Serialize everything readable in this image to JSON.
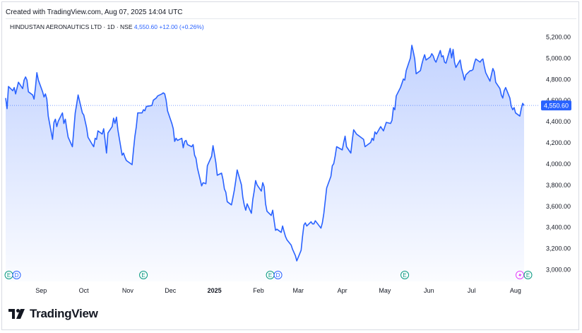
{
  "header": {
    "created_with": "Created with TradingView.com, Aug 07, 2025 14:04 UTC",
    "symbol": "HINDUSTAN AERONAUTICS LTD · 1D · NSE",
    "last_price": "4,550.60",
    "change": "+12.00 (+0.26%)"
  },
  "brand": {
    "name": "TradingView",
    "logo_icon": "tradingview-logo-icon"
  },
  "chart_data": {
    "type": "area",
    "title": "",
    "xlabel": "",
    "ylabel": "",
    "ylim": [
      2950,
      5300
    ],
    "y_ticks": [
      "5,200.00",
      "5,000.00",
      "4,800.00",
      "4,600.00",
      "4,400.00",
      "4,200.00",
      "4,000.00",
      "3,800.00",
      "3,600.00",
      "3,400.00",
      "3,200.00",
      "3,000.00"
    ],
    "y_tick_values": [
      5200,
      5000,
      4800,
      4600,
      4400,
      4200,
      4000,
      3800,
      3600,
      3400,
      3200,
      3000
    ],
    "x_ticks": [
      {
        "label": "Sep",
        "date": "2024-09-01"
      },
      {
        "label": "Oct",
        "date": "2024-10-01"
      },
      {
        "label": "Nov",
        "date": "2024-11-01"
      },
      {
        "label": "Dec",
        "date": "2024-12-01"
      },
      {
        "label": "2025",
        "date": "2025-01-01"
      },
      {
        "label": "Feb",
        "date": "2025-02-01"
      },
      {
        "label": "Mar",
        "date": "2025-03-01"
      },
      {
        "label": "Apr",
        "date": "2025-04-01"
      },
      {
        "label": "May",
        "date": "2025-05-01"
      },
      {
        "label": "Jun",
        "date": "2025-06-01"
      },
      {
        "label": "Jul",
        "date": "2025-07-01"
      },
      {
        "label": "Aug",
        "date": "2025-08-01"
      }
    ],
    "last_price_label": "4,550.60",
    "last_price_value": 4550.6,
    "line_color": "#2962ff",
    "axis_label_color": "#131722",
    "series": [
      {
        "values": [
          [
            "2024-08-07",
            4620
          ],
          [
            "2024-08-08",
            4520
          ],
          [
            "2024-08-09",
            4730
          ],
          [
            "2024-08-12",
            4690
          ],
          [
            "2024-08-13",
            4720
          ],
          [
            "2024-08-14",
            4660
          ],
          [
            "2024-08-16",
            4770
          ],
          [
            "2024-08-19",
            4710
          ],
          [
            "2024-08-20",
            4790
          ],
          [
            "2024-08-21",
            4820
          ],
          [
            "2024-08-22",
            4790
          ],
          [
            "2024-08-23",
            4680
          ],
          [
            "2024-08-26",
            4650
          ],
          [
            "2024-08-27",
            4610
          ],
          [
            "2024-08-28",
            4720
          ],
          [
            "2024-08-29",
            4860
          ],
          [
            "2024-08-30",
            4790
          ],
          [
            "2024-09-02",
            4680
          ],
          [
            "2024-09-03",
            4630
          ],
          [
            "2024-09-04",
            4660
          ],
          [
            "2024-09-05",
            4610
          ],
          [
            "2024-09-06",
            4450
          ],
          [
            "2024-09-09",
            4230
          ],
          [
            "2024-09-10",
            4390
          ],
          [
            "2024-09-11",
            4420
          ],
          [
            "2024-09-12",
            4350
          ],
          [
            "2024-09-13",
            4400
          ],
          [
            "2024-09-16",
            4480
          ],
          [
            "2024-09-17",
            4380
          ],
          [
            "2024-09-18",
            4420
          ],
          [
            "2024-09-19",
            4330
          ],
          [
            "2024-09-20",
            4250
          ],
          [
            "2024-09-23",
            4160
          ],
          [
            "2024-09-24",
            4320
          ],
          [
            "2024-09-25",
            4480
          ],
          [
            "2024-09-26",
            4560
          ],
          [
            "2024-09-27",
            4650
          ],
          [
            "2024-09-30",
            4480
          ],
          [
            "2024-10-01",
            4460
          ],
          [
            "2024-10-03",
            4340
          ],
          [
            "2024-10-04",
            4250
          ],
          [
            "2024-10-07",
            4180
          ],
          [
            "2024-10-08",
            4160
          ],
          [
            "2024-10-09",
            4240
          ],
          [
            "2024-10-10",
            4230
          ],
          [
            "2024-10-11",
            4310
          ],
          [
            "2024-10-14",
            4280
          ],
          [
            "2024-10-15",
            4330
          ],
          [
            "2024-10-16",
            4220
          ],
          [
            "2024-10-17",
            4100
          ],
          [
            "2024-10-18",
            4290
          ],
          [
            "2024-10-21",
            4350
          ],
          [
            "2024-10-22",
            4430
          ],
          [
            "2024-10-23",
            4380
          ],
          [
            "2024-10-24",
            4440
          ],
          [
            "2024-10-25",
            4320
          ],
          [
            "2024-10-28",
            4080
          ],
          [
            "2024-10-29",
            4100
          ],
          [
            "2024-10-30",
            4060
          ],
          [
            "2024-10-31",
            4030
          ],
          [
            "2024-11-04",
            3990
          ],
          [
            "2024-11-05",
            4130
          ],
          [
            "2024-11-06",
            4260
          ],
          [
            "2024-11-07",
            4350
          ],
          [
            "2024-11-08",
            4480
          ],
          [
            "2024-11-11",
            4480
          ],
          [
            "2024-11-12",
            4510
          ],
          [
            "2024-11-13",
            4500
          ],
          [
            "2024-11-14",
            4540
          ],
          [
            "2024-11-18",
            4550
          ],
          [
            "2024-11-19",
            4600
          ],
          [
            "2024-11-21",
            4620
          ],
          [
            "2024-11-22",
            4640
          ],
          [
            "2024-11-25",
            4660
          ],
          [
            "2024-11-26",
            4670
          ],
          [
            "2024-11-27",
            4660
          ],
          [
            "2024-11-28",
            4600
          ],
          [
            "2024-11-29",
            4500
          ],
          [
            "2024-12-02",
            4380
          ],
          [
            "2024-12-03",
            4330
          ],
          [
            "2024-12-04",
            4210
          ],
          [
            "2024-12-05",
            4240
          ],
          [
            "2024-12-06",
            4220
          ],
          [
            "2024-12-09",
            4240
          ],
          [
            "2024-12-10",
            4150
          ],
          [
            "2024-12-11",
            4210
          ],
          [
            "2024-12-12",
            4220
          ],
          [
            "2024-12-13",
            4180
          ],
          [
            "2024-12-16",
            4160
          ],
          [
            "2024-12-17",
            4180
          ],
          [
            "2024-12-18",
            4080
          ],
          [
            "2024-12-19",
            4050
          ],
          [
            "2024-12-20",
            3960
          ],
          [
            "2024-12-23",
            3790
          ],
          [
            "2024-12-24",
            3820
          ],
          [
            "2024-12-26",
            3810
          ],
          [
            "2024-12-27",
            3980
          ],
          [
            "2024-12-30",
            4070
          ],
          [
            "2024-12-31",
            4170
          ],
          [
            "2025-01-01",
            4090
          ],
          [
            "2025-01-02",
            4010
          ],
          [
            "2025-01-03",
            3890
          ],
          [
            "2025-01-06",
            3910
          ],
          [
            "2025-01-07",
            3850
          ],
          [
            "2025-01-08",
            3760
          ],
          [
            "2025-01-09",
            3730
          ],
          [
            "2025-01-10",
            3640
          ],
          [
            "2025-01-13",
            3610
          ],
          [
            "2025-01-14",
            3680
          ],
          [
            "2025-01-15",
            3750
          ],
          [
            "2025-01-16",
            3840
          ],
          [
            "2025-01-17",
            3940
          ],
          [
            "2025-01-20",
            3800
          ],
          [
            "2025-01-21",
            3680
          ],
          [
            "2025-01-22",
            3610
          ],
          [
            "2025-01-23",
            3560
          ],
          [
            "2025-01-24",
            3620
          ],
          [
            "2025-01-27",
            3530
          ],
          [
            "2025-01-28",
            3660
          ],
          [
            "2025-01-29",
            3740
          ],
          [
            "2025-01-30",
            3840
          ],
          [
            "2025-01-31",
            3800
          ],
          [
            "2025-02-03",
            3740
          ],
          [
            "2025-02-04",
            3820
          ],
          [
            "2025-02-05",
            3780
          ],
          [
            "2025-02-06",
            3620
          ],
          [
            "2025-02-07",
            3550
          ],
          [
            "2025-02-10",
            3510
          ],
          [
            "2025-02-11",
            3560
          ],
          [
            "2025-02-12",
            3460
          ],
          [
            "2025-02-13",
            3370
          ],
          [
            "2025-02-14",
            3380
          ],
          [
            "2025-02-17",
            3350
          ],
          [
            "2025-02-18",
            3410
          ],
          [
            "2025-02-19",
            3360
          ],
          [
            "2025-02-20",
            3310
          ],
          [
            "2025-02-21",
            3280
          ],
          [
            "2025-02-24",
            3230
          ],
          [
            "2025-02-25",
            3190
          ],
          [
            "2025-02-27",
            3130
          ],
          [
            "2025-02-28",
            3080
          ],
          [
            "2025-03-03",
            3180
          ],
          [
            "2025-03-04",
            3310
          ],
          [
            "2025-03-05",
            3420
          ],
          [
            "2025-03-06",
            3440
          ],
          [
            "2025-03-07",
            3410
          ],
          [
            "2025-03-10",
            3450
          ],
          [
            "2025-03-11",
            3430
          ],
          [
            "2025-03-12",
            3430
          ],
          [
            "2025-03-13",
            3460
          ],
          [
            "2025-03-17",
            3390
          ],
          [
            "2025-03-18",
            3440
          ],
          [
            "2025-03-19",
            3530
          ],
          [
            "2025-03-20",
            3650
          ],
          [
            "2025-03-21",
            3770
          ],
          [
            "2025-03-24",
            3880
          ],
          [
            "2025-03-25",
            3980
          ],
          [
            "2025-03-26",
            4000
          ],
          [
            "2025-03-27",
            4070
          ],
          [
            "2025-03-28",
            4160
          ],
          [
            "2025-04-01",
            4130
          ],
          [
            "2025-04-02",
            4200
          ],
          [
            "2025-04-03",
            4260
          ],
          [
            "2025-04-04",
            4160
          ],
          [
            "2025-04-07",
            4100
          ],
          [
            "2025-04-08",
            4220
          ],
          [
            "2025-04-09",
            4320
          ],
          [
            "2025-04-11",
            4280
          ],
          [
            "2025-04-15",
            4240
          ],
          [
            "2025-04-16",
            4230
          ],
          [
            "2025-04-17",
            4160
          ],
          [
            "2025-04-21",
            4200
          ],
          [
            "2025-04-22",
            4240
          ],
          [
            "2025-04-23",
            4220
          ],
          [
            "2025-04-24",
            4300
          ],
          [
            "2025-04-25",
            4280
          ],
          [
            "2025-04-28",
            4350
          ],
          [
            "2025-04-29",
            4330
          ],
          [
            "2025-04-30",
            4310
          ],
          [
            "2025-05-02",
            4390
          ],
          [
            "2025-05-05",
            4380
          ],
          [
            "2025-05-06",
            4410
          ],
          [
            "2025-05-07",
            4530
          ],
          [
            "2025-05-08",
            4510
          ],
          [
            "2025-05-09",
            4640
          ],
          [
            "2025-05-12",
            4720
          ],
          [
            "2025-05-13",
            4760
          ],
          [
            "2025-05-14",
            4800
          ],
          [
            "2025-05-15",
            4790
          ],
          [
            "2025-05-16",
            4880
          ],
          [
            "2025-05-19",
            5000
          ],
          [
            "2025-05-20",
            5120
          ],
          [
            "2025-05-21",
            5060
          ],
          [
            "2025-05-22",
            4990
          ],
          [
            "2025-05-23",
            4850
          ],
          [
            "2025-05-26",
            4880
          ],
          [
            "2025-05-27",
            4940
          ],
          [
            "2025-05-28",
            4990
          ],
          [
            "2025-05-29",
            5030
          ],
          [
            "2025-05-30",
            4980
          ],
          [
            "2025-06-02",
            5010
          ],
          [
            "2025-06-03",
            5040
          ],
          [
            "2025-06-04",
            5020
          ],
          [
            "2025-06-05",
            4980
          ],
          [
            "2025-06-06",
            4960
          ],
          [
            "2025-06-09",
            5070
          ],
          [
            "2025-06-10",
            5010
          ],
          [
            "2025-06-11",
            5020
          ],
          [
            "2025-06-12",
            4960
          ],
          [
            "2025-06-13",
            4950
          ],
          [
            "2025-06-16",
            5090
          ],
          [
            "2025-06-17",
            5000
          ],
          [
            "2025-06-18",
            5080
          ],
          [
            "2025-06-19",
            4960
          ],
          [
            "2025-06-20",
            4910
          ],
          [
            "2025-06-23",
            4980
          ],
          [
            "2025-06-24",
            4900
          ],
          [
            "2025-06-25",
            4850
          ],
          [
            "2025-06-26",
            4790
          ],
          [
            "2025-06-27",
            4840
          ],
          [
            "2025-06-30",
            4880
          ],
          [
            "2025-07-01",
            4880
          ],
          [
            "2025-07-02",
            4890
          ],
          [
            "2025-07-03",
            4950
          ],
          [
            "2025-07-04",
            4990
          ],
          [
            "2025-07-07",
            4960
          ],
          [
            "2025-07-08",
            4980
          ],
          [
            "2025-07-09",
            4990
          ],
          [
            "2025-07-10",
            4920
          ],
          [
            "2025-07-11",
            4860
          ],
          [
            "2025-07-14",
            4780
          ],
          [
            "2025-07-15",
            4840
          ],
          [
            "2025-07-16",
            4900
          ],
          [
            "2025-07-17",
            4870
          ],
          [
            "2025-07-18",
            4770
          ],
          [
            "2025-07-21",
            4710
          ],
          [
            "2025-07-22",
            4650
          ],
          [
            "2025-07-23",
            4620
          ],
          [
            "2025-07-24",
            4690
          ],
          [
            "2025-07-25",
            4720
          ],
          [
            "2025-07-28",
            4620
          ],
          [
            "2025-07-29",
            4540
          ],
          [
            "2025-07-30",
            4510
          ],
          [
            "2025-07-31",
            4530
          ],
          [
            "2025-08-01",
            4480
          ],
          [
            "2025-08-04",
            4450
          ],
          [
            "2025-08-05",
            4520
          ],
          [
            "2025-08-06",
            4570
          ],
          [
            "2025-08-07",
            4550
          ]
        ]
      }
    ],
    "event_markers": [
      {
        "letters": [
          "E",
          "D"
        ],
        "date": "2024-08-12"
      },
      {
        "letters": [
          "E"
        ],
        "date": "2024-11-12"
      },
      {
        "letters": [
          "E",
          "D"
        ],
        "date": "2025-02-12"
      },
      {
        "letters": [
          "E"
        ],
        "date": "2025-05-15"
      },
      {
        "letters": [
          "E"
        ],
        "date": "2025-08-07"
      }
    ],
    "marker_colors": {
      "E": "#089981",
      "D": "#2962ff",
      "today": "#e040fb"
    },
    "grid": false
  }
}
